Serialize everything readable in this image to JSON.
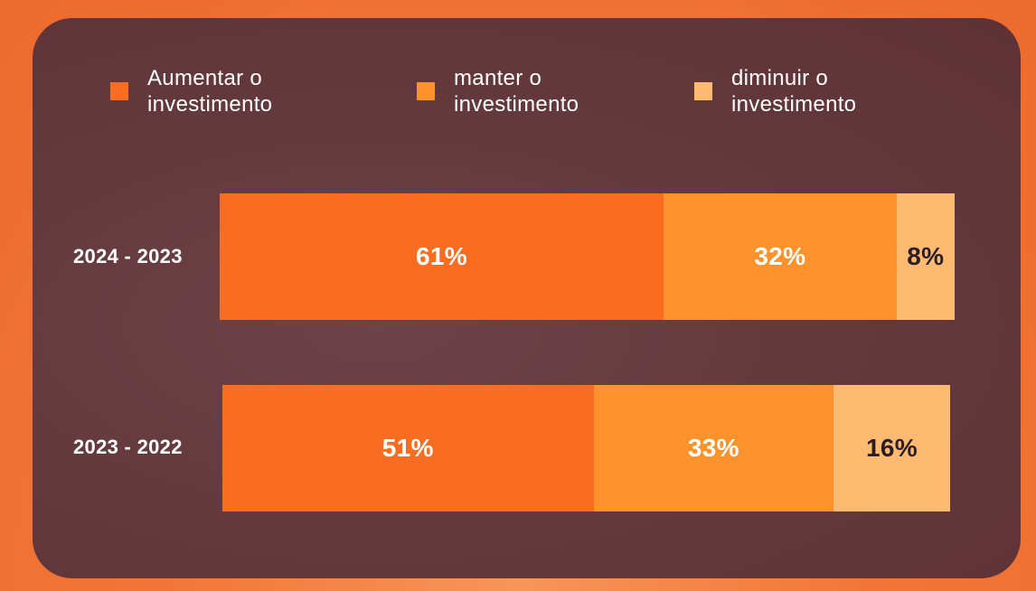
{
  "chart_data": {
    "type": "bar",
    "orientation": "horizontal",
    "stacked": true,
    "categories": [
      "2024 - 2023",
      "2023 - 2022"
    ],
    "series": [
      {
        "name": "Aumentar o\ninvestimento",
        "values": [
          61,
          51
        ],
        "labels": [
          "61%",
          "51%"
        ],
        "color": "#f96d22",
        "label_color": "#ffffff"
      },
      {
        "name": "manter o\ninvestimento",
        "values": [
          32,
          33
        ],
        "labels": [
          "32%",
          "33%"
        ],
        "color": "#fc922b",
        "label_color": "#ffffff"
      },
      {
        "name": "diminuir o\ninvestimento",
        "values": [
          8,
          16
        ],
        "labels": [
          "8%",
          "16%"
        ],
        "color": "#feba70",
        "label_color": "#2b1d24"
      }
    ],
    "xlim": [
      0,
      101
    ],
    "grid": false,
    "legend_position": "top"
  }
}
